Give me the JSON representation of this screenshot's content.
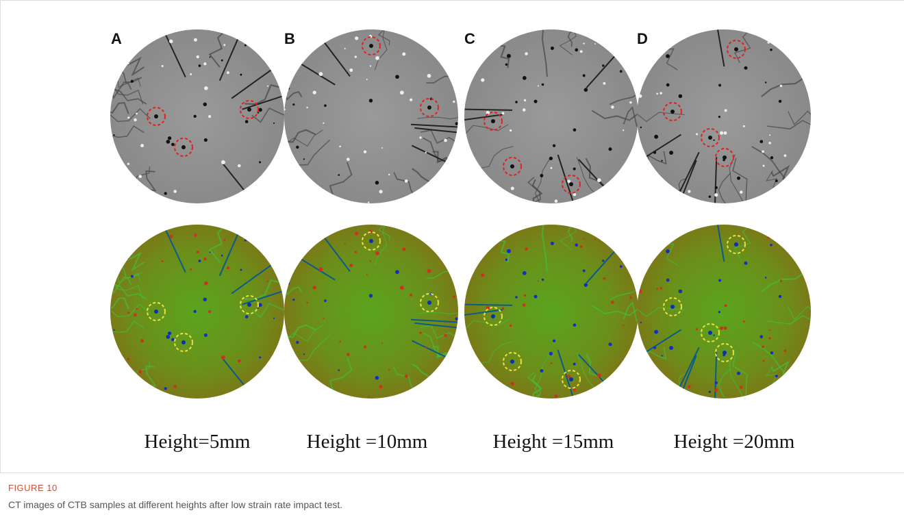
{
  "figure": {
    "panel_labels": [
      "A",
      "B",
      "C",
      "D"
    ],
    "height_labels": [
      "Height=5mm",
      "Height =10mm",
      "Height =15mm",
      "Height =20mm"
    ],
    "figure_label": "FIGURE 10",
    "caption": "CT images of CTB samples at different heights after low strain rate impact test."
  }
}
